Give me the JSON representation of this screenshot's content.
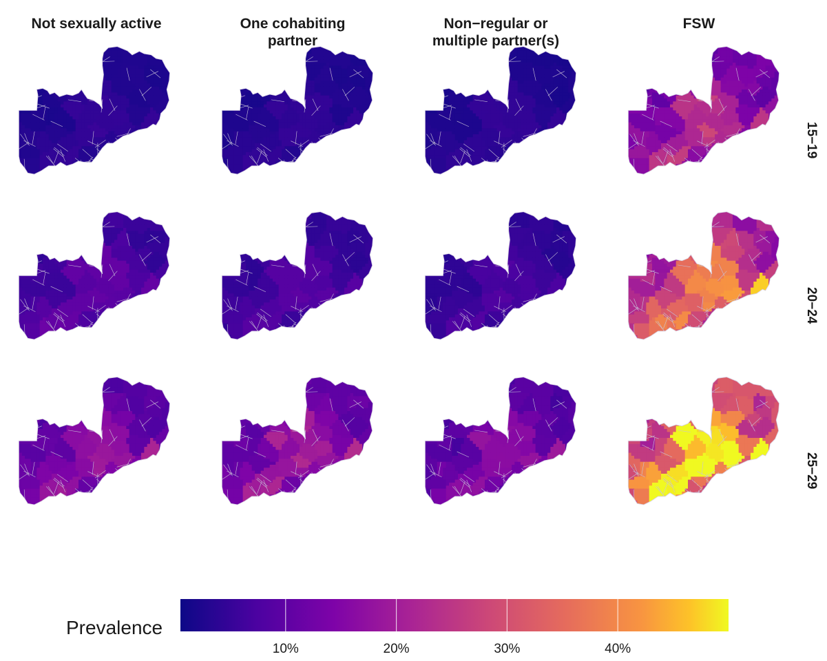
{
  "columns": [
    "Not sexually active",
    "One cohabiting\npartner",
    "Non−regular or\nmultiple partner(s)",
    "FSW"
  ],
  "rows": [
    "15−19",
    "20−24",
    "25−29"
  ],
  "legend": {
    "title": "Prevalence",
    "ticks": [
      {
        "label": "10%",
        "value": 10
      },
      {
        "label": "20%",
        "value": 20
      },
      {
        "label": "30%",
        "value": 30
      },
      {
        "label": "40%",
        "value": 40
      }
    ],
    "range": [
      0.5,
      50
    ],
    "palette": [
      "#0d0887",
      "#6a00a8",
      "#b12a90",
      "#e16462",
      "#fca636",
      "#f0f921"
    ]
  },
  "panels": [
    {
      "column": 0,
      "row": 0,
      "typical_prevalence": 3
    },
    {
      "column": 1,
      "row": 0,
      "typical_prevalence": 3
    },
    {
      "column": 2,
      "row": 0,
      "typical_prevalence": 3
    },
    {
      "column": 3,
      "row": 0,
      "typical_prevalence": 16
    },
    {
      "column": 0,
      "row": 1,
      "typical_prevalence": 7
    },
    {
      "column": 1,
      "row": 1,
      "typical_prevalence": 6
    },
    {
      "column": 2,
      "row": 1,
      "typical_prevalence": 5
    },
    {
      "column": 3,
      "row": 1,
      "typical_prevalence": 26
    },
    {
      "column": 0,
      "row": 2,
      "typical_prevalence": 12
    },
    {
      "column": 1,
      "row": 2,
      "typical_prevalence": 13
    },
    {
      "column": 2,
      "row": 2,
      "typical_prevalence": 11
    },
    {
      "column": 3,
      "row": 2,
      "typical_prevalence": 34
    }
  ]
}
